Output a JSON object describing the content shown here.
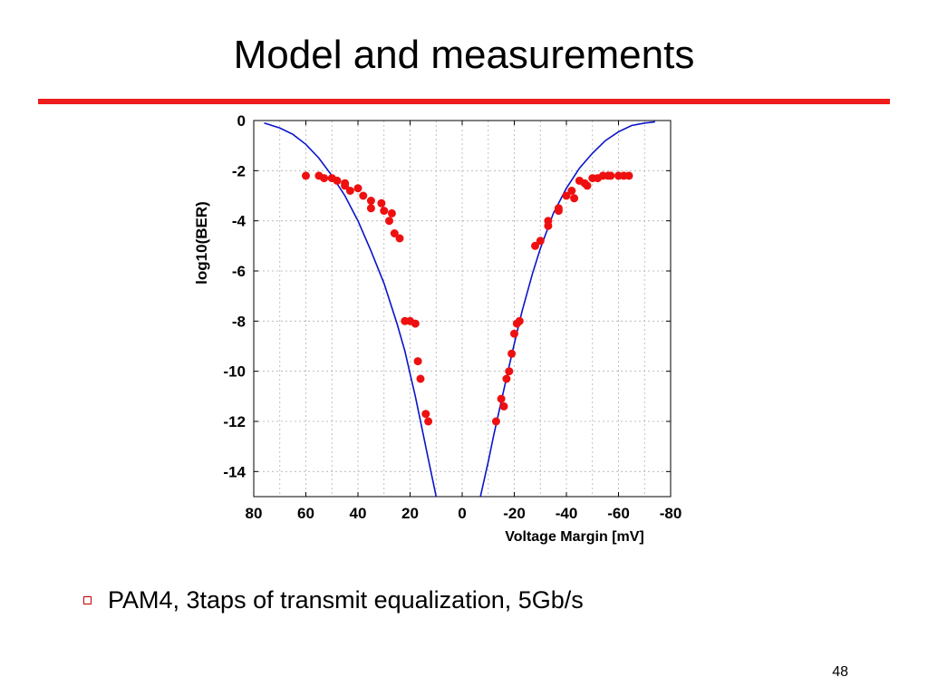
{
  "slide": {
    "title": "Model and measurements",
    "bullet": "PAM4, 3taps of transmit equalization, 5Gb/s",
    "page_number": "48",
    "accent_color": "#ee1c1c",
    "bullet_icon": "hollow-square-icon"
  },
  "chart_data": {
    "type": "scatter",
    "title": "",
    "xlabel": "Voltage Margin [mV]",
    "ylabel": "log10(BER)",
    "xlim": [
      80,
      -80
    ],
    "ylim": [
      -15,
      0
    ],
    "x_ticks": [
      "80",
      "60",
      "40",
      "20",
      "0",
      "-20",
      "-40",
      "-60",
      "-80"
    ],
    "y_ticks": [
      "0",
      "-2",
      "-4",
      "-6",
      "-8",
      "-10",
      "-12",
      "-14"
    ],
    "grid": true,
    "series": [
      {
        "kind": "line",
        "color": "#0a14c8",
        "points": [
          [
            76,
            -0.1
          ],
          [
            70,
            -0.3
          ],
          [
            65,
            -0.55
          ],
          [
            60,
            -0.95
          ],
          [
            55,
            -1.5
          ],
          [
            50,
            -2.2
          ],
          [
            45,
            -3.0
          ],
          [
            40,
            -4.0
          ],
          [
            35,
            -5.2
          ],
          [
            30,
            -6.5
          ],
          [
            25,
            -8.1
          ],
          [
            22,
            -9.2
          ],
          [
            20,
            -10.1
          ],
          [
            18,
            -11.0
          ],
          [
            15,
            -12.5
          ],
          [
            13,
            -13.5
          ],
          [
            10,
            -15
          ]
        ]
      },
      {
        "kind": "line",
        "color": "#0a14c8",
        "points": [
          [
            -7,
            -15
          ],
          [
            -10,
            -13.6
          ],
          [
            -12,
            -12.6
          ],
          [
            -15,
            -11.2
          ],
          [
            -18,
            -9.8
          ],
          [
            -20,
            -8.9
          ],
          [
            -23,
            -7.6
          ],
          [
            -27,
            -6.1
          ],
          [
            -30,
            -5.1
          ],
          [
            -35,
            -3.7
          ],
          [
            -40,
            -2.7
          ],
          [
            -45,
            -1.9
          ],
          [
            -50,
            -1.3
          ],
          [
            -55,
            -0.8
          ],
          [
            -60,
            -0.45
          ],
          [
            -65,
            -0.2
          ],
          [
            -70,
            -0.1
          ],
          [
            -74,
            -0.05
          ]
        ]
      },
      {
        "kind": "scatter",
        "color": "#ee1010",
        "points": [
          [
            60,
            -2.2
          ],
          [
            55,
            -2.2
          ],
          [
            53,
            -2.3
          ],
          [
            50,
            -2.3
          ],
          [
            48,
            -2.4
          ],
          [
            45,
            -2.5
          ],
          [
            45,
            -2.6
          ],
          [
            43,
            -2.8
          ],
          [
            40,
            -2.7
          ],
          [
            38,
            -3.0
          ],
          [
            35,
            -3.2
          ],
          [
            35,
            -3.5
          ],
          [
            31,
            -3.3
          ],
          [
            30,
            -3.6
          ],
          [
            28,
            -4.0
          ],
          [
            27,
            -3.7
          ],
          [
            26,
            -4.5
          ],
          [
            24,
            -4.7
          ],
          [
            22,
            -8.0
          ],
          [
            20,
            -8.0
          ],
          [
            18,
            -8.1
          ],
          [
            17,
            -9.6
          ],
          [
            16,
            -10.3
          ],
          [
            14,
            -11.7
          ],
          [
            13,
            -12.0
          ],
          [
            -13,
            -12.0
          ],
          [
            -15,
            -11.1
          ],
          [
            -16,
            -11.4
          ],
          [
            -17,
            -10.3
          ],
          [
            -18,
            -10.0
          ],
          [
            -19,
            -9.3
          ],
          [
            -20,
            -8.5
          ],
          [
            -21,
            -8.1
          ],
          [
            -22,
            -8.0
          ],
          [
            -28,
            -5.0
          ],
          [
            -30,
            -4.8
          ],
          [
            -33,
            -4.0
          ],
          [
            -33,
            -4.2
          ],
          [
            -37,
            -3.6
          ],
          [
            -37,
            -3.5
          ],
          [
            -40,
            -3.0
          ],
          [
            -42,
            -2.8
          ],
          [
            -43,
            -3.1
          ],
          [
            -45,
            -2.4
          ],
          [
            -47,
            -2.5
          ],
          [
            -48,
            -2.6
          ],
          [
            -50,
            -2.3
          ],
          [
            -52,
            -2.3
          ],
          [
            -54,
            -2.2
          ],
          [
            -56,
            -2.2
          ],
          [
            -57,
            -2.2
          ],
          [
            -60,
            -2.2
          ],
          [
            -62,
            -2.2
          ],
          [
            -64,
            -2.2
          ]
        ]
      }
    ]
  }
}
